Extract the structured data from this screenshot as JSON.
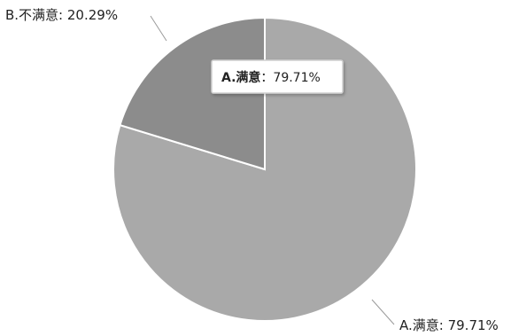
{
  "chart_data": {
    "type": "pie",
    "slices": [
      {
        "label": "A.满意",
        "value": 79.71,
        "display": "A.满意: 79.71%",
        "color": "#a9a9a9"
      },
      {
        "label": "B.不满意",
        "value": 20.29,
        "display": "B.不满意: 20.29%",
        "color": "#8c8c8c"
      }
    ],
    "tooltip": {
      "category": "A.满意",
      "separator": "：",
      "value": "79.71%"
    }
  }
}
